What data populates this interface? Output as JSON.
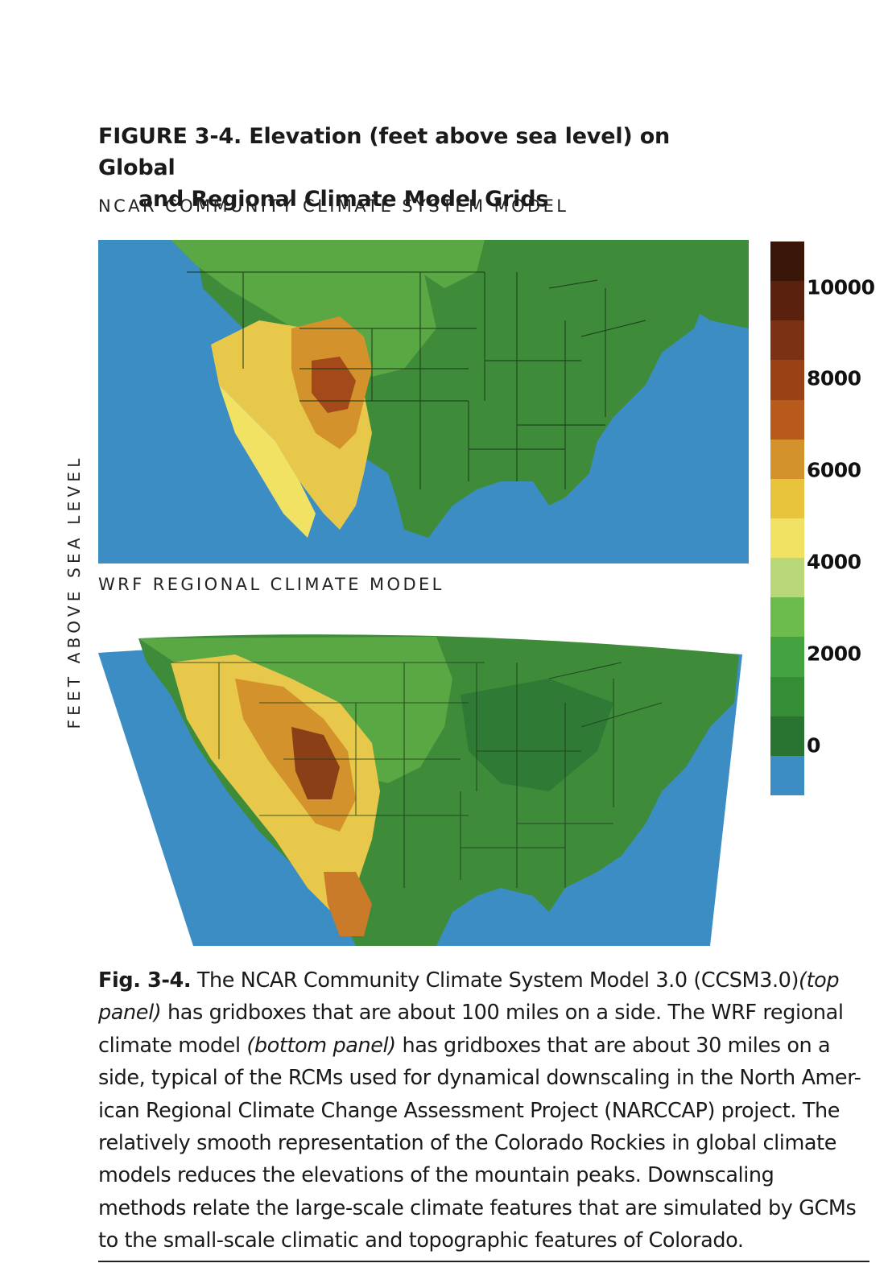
{
  "figure": {
    "title_line1": "FIGURE 3-4. Elevation (feet above sea level) on Global",
    "title_line2": "and Regional Climate Model Grids",
    "side_label": "FEET ABOVE SEA LEVEL",
    "top_panel_label": "NCAR COMMUNITY CLIMATE SYSTEM MODEL",
    "bottom_panel_label": "WRF REGIONAL CLIMATE MODEL"
  },
  "colors": {
    "ocean": "#3b8dc4",
    "low": "#2f7d3a",
    "mid": "#5aa843",
    "light": "#a8d06a",
    "yellow": "#e8c84a",
    "orange": "#d08a2c",
    "brown": "#8a3f16",
    "dark": "#3a1608"
  },
  "colorbar": {
    "ticks": [
      "10000",
      "8000",
      "6000",
      "4000",
      "2000",
      "0"
    ],
    "colors": [
      "#3a1608",
      "#5a220e",
      "#7a3212",
      "#9a4216",
      "#b85a1c",
      "#d4922c",
      "#e8c43c",
      "#f2e264",
      "#b8d878",
      "#6cbc4c",
      "#45a240",
      "#358e36",
      "#2a7432",
      "#3b8dc4"
    ]
  },
  "caption": {
    "fig_label": "Fig. 3-4.",
    "part1": " The NCAR Community Climate System Model 3.0 (CCSM3.0)",
    "italic1": "(top panel)",
    "part2": " has gridboxes that are about 100 miles on a side. The WRF regional climate model ",
    "italic2": "(bottom panel)",
    "part3": " has gridboxes that are about 30 miles on a side, typical of the RCMs used for dynamical downscaling in the North Amer-ican Regional Climate Change Assessment Project (NARCCAP) project. The relatively smooth representation of the Colorado Rockies in global climate models reduces the elevations of the mountain peaks. Downscaling methods relate the large-scale climate features that are simulated by GCMs to the small-scale climatic and topographic features of Colorado."
  }
}
